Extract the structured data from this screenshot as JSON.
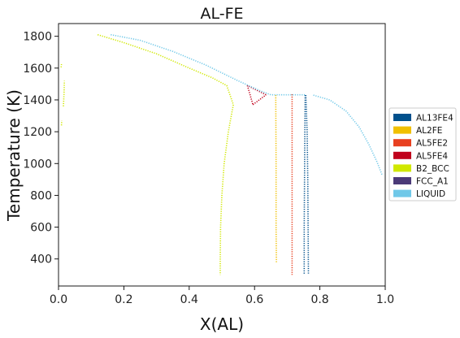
{
  "chart_data": {
    "type": "scatter",
    "title": "AL-FE",
    "xlabel": "X(AL)",
    "ylabel": "Temperature (K)",
    "xlim": [
      0,
      1
    ],
    "ylim": [
      230,
      1880
    ],
    "xticks": [
      0,
      0.2,
      0.4,
      0.6,
      0.8,
      1.0
    ],
    "xtick_labels": [
      "0.0",
      "0.2",
      "0.4",
      "0.6",
      "0.8",
      "1.0"
    ],
    "yticks": [
      400,
      600,
      800,
      1000,
      1200,
      1400,
      1600,
      1800
    ],
    "ytick_labels": [
      "400",
      "600",
      "800",
      "1000",
      "1200",
      "1400",
      "1600",
      "1800"
    ],
    "grid": false,
    "legend_position": "right",
    "series": [
      {
        "name": "AL13FE4",
        "color": "#00508c",
        "segments": [
          [
            [
              0.755,
              1430
            ],
            [
              0.754,
              1200
            ],
            [
              0.753,
              900
            ],
            [
              0.752,
              600
            ],
            [
              0.752,
              300
            ]
          ],
          [
            [
              0.757,
              1430
            ],
            [
              0.761,
              1200
            ],
            [
              0.763,
              900
            ],
            [
              0.764,
              600
            ],
            [
              0.765,
              300
            ]
          ]
        ]
      },
      {
        "name": "AL2FE",
        "color": "#f0c000",
        "segments": [
          [
            [
              0.665,
              1430
            ],
            [
              0.666,
              1000
            ],
            [
              0.666,
              600
            ],
            [
              0.667,
              380
            ]
          ]
        ]
      },
      {
        "name": "AL5FE2",
        "color": "#e84020",
        "segments": [
          [
            [
              0.715,
              1435
            ],
            [
              0.715,
              1100
            ],
            [
              0.715,
              700
            ],
            [
              0.715,
              300
            ]
          ]
        ]
      },
      {
        "name": "AL5FE4",
        "color": "#c0001c",
        "segments": [
          [
            [
              0.578,
              1490
            ],
            [
              0.595,
              1370
            ]
          ],
          [
            [
              0.595,
              1370
            ],
            [
              0.635,
              1432
            ]
          ],
          [
            [
              0.635,
              1432
            ],
            [
              0.578,
              1490
            ]
          ]
        ]
      },
      {
        "name": "B2_BCC",
        "color": "#d0e800",
        "segments": [
          [
            [
              0.12,
              1810
            ],
            [
              0.2,
              1760
            ],
            [
              0.3,
              1690
            ],
            [
              0.4,
              1600
            ],
            [
              0.47,
              1540
            ],
            [
              0.515,
              1490
            ],
            [
              0.535,
              1370
            ],
            [
              0.52,
              1200
            ],
            [
              0.507,
              1000
            ],
            [
              0.5,
              800
            ],
            [
              0.496,
              600
            ],
            [
              0.495,
              400
            ],
            [
              0.495,
              300
            ]
          ],
          [
            [
              0.015,
              1360
            ],
            [
              0.017,
              1440
            ],
            [
              0.018,
              1520
            ]
          ],
          [
            [
              0.009,
              1240
            ],
            [
              0.01,
              1270
            ]
          ],
          [
            [
              0.008,
              1605
            ],
            [
              0.009,
              1625
            ]
          ]
        ]
      },
      {
        "name": "FCC_A1",
        "color": "#4b3a78",
        "segments": []
      },
      {
        "name": "LIQUID",
        "color": "#70c8e8",
        "segments": [
          [
            [
              0.16,
              1810
            ],
            [
              0.25,
              1775
            ],
            [
              0.35,
              1705
            ],
            [
              0.45,
              1620
            ],
            [
              0.55,
              1520
            ],
            [
              0.62,
              1455
            ],
            [
              0.65,
              1432
            ],
            [
              0.755,
              1432
            ]
          ],
          [
            [
              0.78,
              1430
            ],
            [
              0.83,
              1400
            ],
            [
              0.88,
              1330
            ],
            [
              0.92,
              1230
            ],
            [
              0.95,
              1120
            ],
            [
              0.975,
              1010
            ],
            [
              0.99,
              930
            ]
          ]
        ]
      }
    ]
  }
}
